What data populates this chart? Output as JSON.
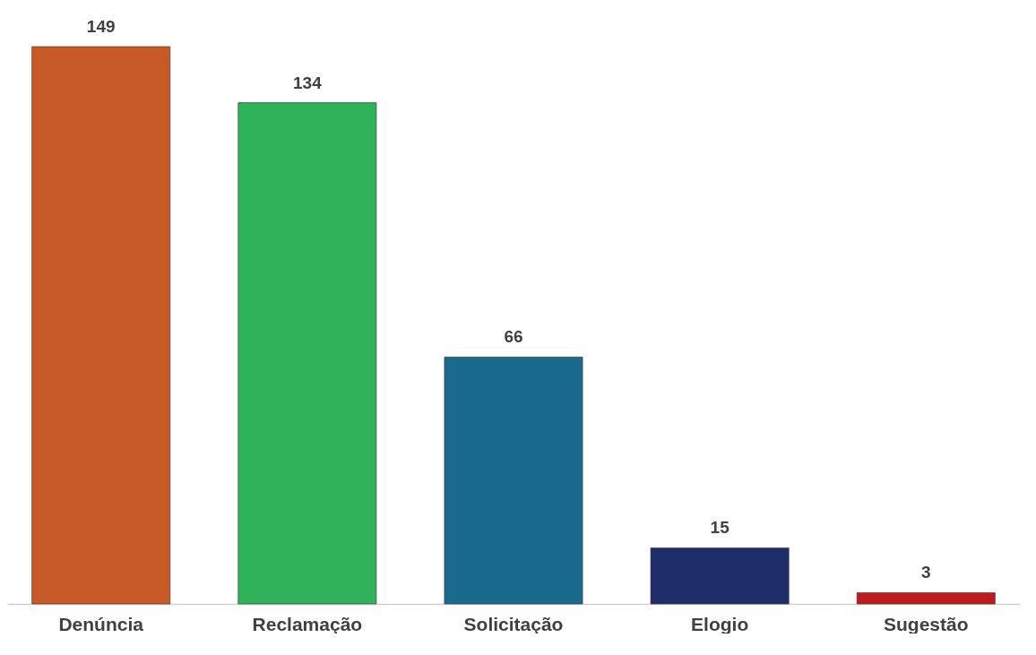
{
  "chart_data": {
    "type": "bar",
    "categories": [
      "Denúncia",
      "Reclamação",
      "Solicitação",
      "Elogio",
      "Sugestão"
    ],
    "values": [
      149,
      134,
      66,
      15,
      3
    ],
    "colors": [
      "#c85a27",
      "#2eb358",
      "#1a6a8e",
      "#1f2d6a",
      "#c0191e"
    ],
    "data_labels": true
  }
}
